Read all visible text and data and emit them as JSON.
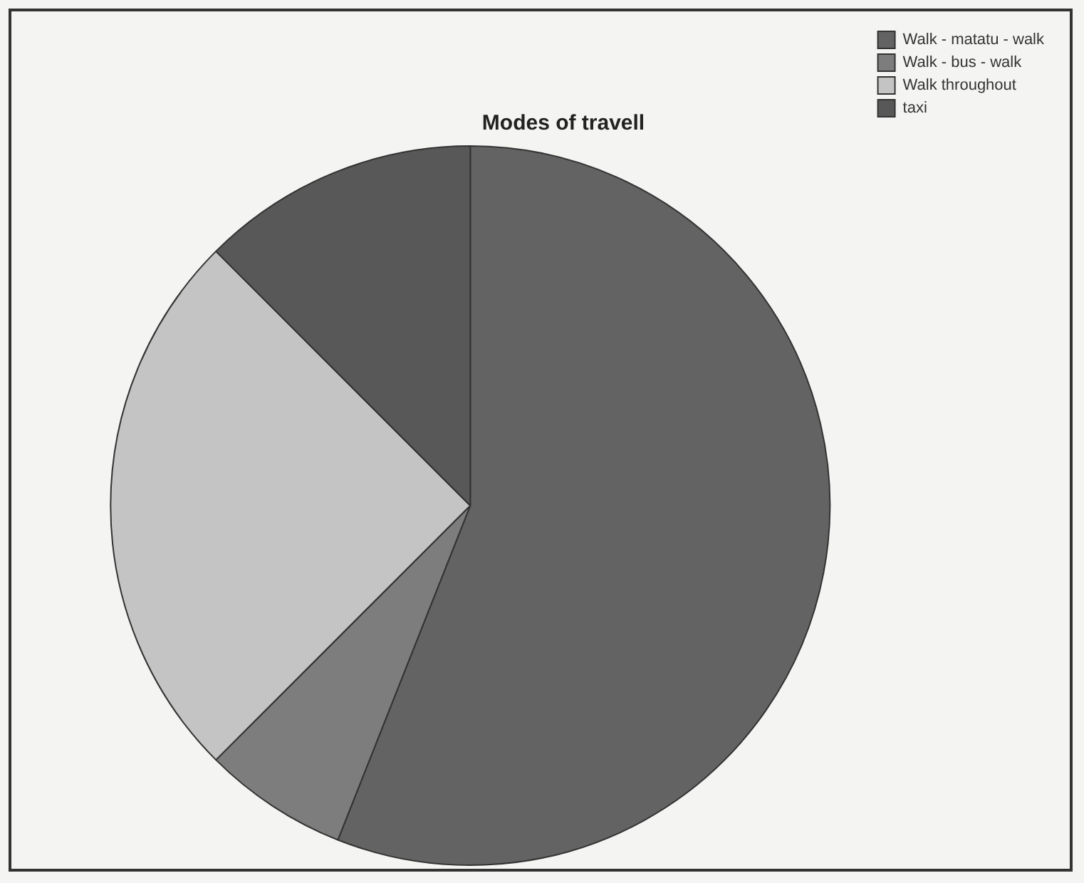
{
  "chart_data": {
    "type": "pie",
    "title": "Modes of travell",
    "categories": [
      "Walk - matatu - walk",
      "Walk - bus - walk",
      "Walk throughout",
      "taxi"
    ],
    "values": [
      56,
      6.5,
      25,
      12.5
    ],
    "colors": [
      "#636363",
      "#7d7d7d",
      "#c4c4c4",
      "#585858"
    ],
    "legend": "top right"
  }
}
